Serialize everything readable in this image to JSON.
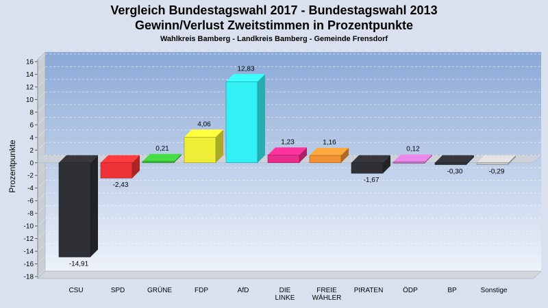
{
  "header": {
    "title": "Vergleich Bundestagswahl 2017 - Bundestagswahl 2013",
    "subtitle": "Gewinn/Verlust Zweitstimmen in Prozentpunkte",
    "caption": "Wahlkreis Bamberg - Landkreis Bamberg - Gemeinde Frensdorf"
  },
  "chart_data": {
    "type": "bar",
    "title": "Vergleich Bundestagswahl 2017 - Bundestagswahl 2013",
    "subtitle": "Gewinn/Verlust Zweitstimmen in Prozentpunkte",
    "xlabel": "",
    "ylabel": "Prozentpunkte",
    "ylim": [
      -18,
      16
    ],
    "yticks": [
      16,
      14,
      12,
      10,
      8,
      6,
      4,
      2,
      0,
      -2,
      -4,
      -6,
      -8,
      -10,
      -12,
      -14,
      -16,
      -18
    ],
    "grid": true,
    "legend": "none",
    "categories": [
      [
        "CSU"
      ],
      [
        "SPD"
      ],
      [
        "GRÜNE"
      ],
      [
        "FDP"
      ],
      [
        "AfD"
      ],
      [
        "DIE",
        "LINKE"
      ],
      [
        "FREIE",
        "WÄHLER"
      ],
      [
        "PIRATEN"
      ],
      [
        "ÖDP"
      ],
      [
        "BP"
      ],
      [
        "Sonstige"
      ]
    ],
    "values": [
      -14.91,
      -2.43,
      0.21,
      4.06,
      12.83,
      1.23,
      1.16,
      -1.67,
      0.12,
      -0.3,
      -0.29
    ],
    "value_labels": [
      "-14,91",
      "-2,43",
      "0,21",
      "4,06",
      "12,83",
      "1,23",
      "1,16",
      "-1,67",
      "0,12",
      "-0,30",
      "-0,29"
    ],
    "colors": [
      "#2e3035",
      "#ee3336",
      "#3cc13c",
      "#eeee36",
      "#33f0f5",
      "#ec2c8b",
      "#f49334",
      "#2e3035",
      "#cc77cc",
      "#2e3035",
      "#c6c6c6"
    ]
  }
}
